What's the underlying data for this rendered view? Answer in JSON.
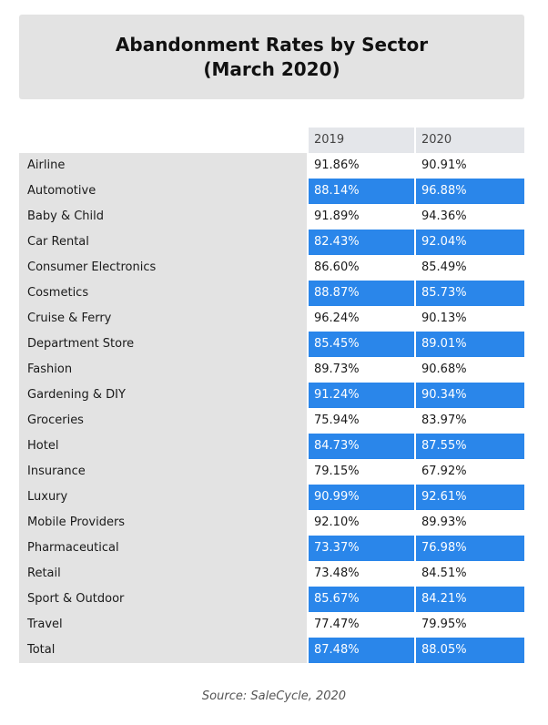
{
  "chart_data": {
    "type": "table",
    "title_line1": "Abandonment Rates by Sector",
    "title_line2": "(March 2020)",
    "columns": [
      "2019",
      "2020"
    ],
    "rows": [
      {
        "label": "Airline",
        "values": [
          "91.86%",
          "90.91%"
        ]
      },
      {
        "label": "Automotive",
        "values": [
          "88.14%",
          "96.88%"
        ]
      },
      {
        "label": "Baby & Child",
        "values": [
          "91.89%",
          "94.36%"
        ]
      },
      {
        "label": "Car Rental",
        "values": [
          "82.43%",
          "92.04%"
        ]
      },
      {
        "label": "Consumer Electronics",
        "values": [
          "86.60%",
          "85.49%"
        ]
      },
      {
        "label": "Cosmetics",
        "values": [
          "88.87%",
          "85.73%"
        ]
      },
      {
        "label": "Cruise & Ferry",
        "values": [
          "96.24%",
          "90.13%"
        ]
      },
      {
        "label": "Department Store",
        "values": [
          "85.45%",
          "89.01%"
        ]
      },
      {
        "label": "Fashion",
        "values": [
          "89.73%",
          "90.68%"
        ]
      },
      {
        "label": "Gardening & DIY",
        "values": [
          "91.24%",
          "90.34%"
        ]
      },
      {
        "label": "Groceries",
        "values": [
          "75.94%",
          "83.97%"
        ]
      },
      {
        "label": "Hotel",
        "values": [
          "84.73%",
          "87.55%"
        ]
      },
      {
        "label": "Insurance",
        "values": [
          "79.15%",
          "67.92%"
        ]
      },
      {
        "label": "Luxury",
        "values": [
          "90.99%",
          "92.61%"
        ]
      },
      {
        "label": "Mobile Providers",
        "values": [
          "92.10%",
          "89.93%"
        ]
      },
      {
        "label": "Pharmaceutical",
        "values": [
          "73.37%",
          "76.98%"
        ]
      },
      {
        "label": "Retail",
        "values": [
          "73.48%",
          "84.51%"
        ]
      },
      {
        "label": "Sport & Outdoor",
        "values": [
          "85.67%",
          "84.21%"
        ]
      },
      {
        "label": "Travel",
        "values": [
          "77.47%",
          "79.95%"
        ]
      },
      {
        "label": "Total",
        "values": [
          "87.48%",
          "88.05%"
        ]
      }
    ],
    "source": "Source: SaleCycle, 2020"
  },
  "colors": {
    "highlight_row": "#2a86ea",
    "label_column": "#e3e3e3",
    "header": "#e4e6ea"
  }
}
